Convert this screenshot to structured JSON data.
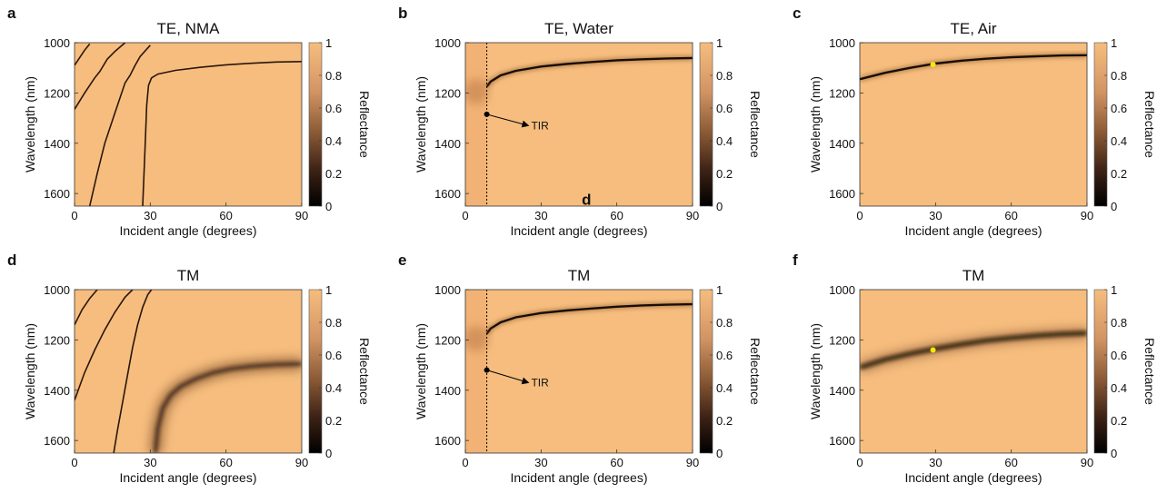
{
  "colors": {
    "background_high": "#f6bd7e",
    "colormap_low": "#000000",
    "marker": "#f5e80a"
  },
  "chart_data": [
    {
      "type": "heatmap",
      "letter": "a",
      "title": "TE, NMA",
      "xlabel": "Incident angle (degrees)",
      "ylabel": "Wavelength (nm)",
      "xlim": [
        0,
        90
      ],
      "ylim": [
        1650,
        1000
      ],
      "xticks": [
        "0",
        "30",
        "60",
        "90"
      ],
      "yticks": [
        "1000",
        "1200",
        "1400",
        "1600"
      ],
      "colorbar": {
        "label": "Reflectance",
        "ticks": [
          "0",
          "0.2",
          "0.4",
          "0.6",
          "0.8",
          "1"
        ]
      },
      "curves": [
        {
          "name": "",
          "style": "thin",
          "x": [
            0,
            2,
            4,
            6
          ],
          "y": [
            1090,
            1060,
            1030,
            1005
          ]
        },
        {
          "name": "",
          "style": "thin",
          "x": [
            0,
            4,
            8,
            10,
            13,
            16,
            20
          ],
          "y": [
            1265,
            1200,
            1140,
            1115,
            1065,
            1035,
            1000
          ]
        },
        {
          "name": "",
          "style": "thin",
          "x": [
            6,
            9,
            12,
            16,
            20,
            22,
            24,
            26,
            30
          ],
          "y": [
            1650,
            1520,
            1400,
            1280,
            1160,
            1130,
            1090,
            1055,
            1010
          ]
        },
        {
          "name": "",
          "style": "thin",
          "x": [
            27,
            28,
            28.6,
            29.3,
            30.5,
            33,
            40,
            50,
            60,
            70,
            80,
            90
          ],
          "y": [
            1650,
            1400,
            1250,
            1170,
            1140,
            1125,
            1110,
            1098,
            1088,
            1082,
            1077,
            1075
          ]
        }
      ],
      "marker": null,
      "vline_x": null,
      "annotation": null
    },
    {
      "type": "heatmap",
      "letter": "b",
      "title": "TE, Water",
      "xlabel": "Incident angle (degrees)",
      "ylabel": "Wavelength (nm)",
      "xlim": [
        0,
        90
      ],
      "ylim": [
        1650,
        1000
      ],
      "xticks": [
        "0",
        "30",
        "60",
        "90"
      ],
      "yticks": [
        "1000",
        "1200",
        "1400",
        "1600"
      ],
      "colorbar": {
        "label": "Reflectance",
        "ticks": [
          "0",
          "0.2",
          "0.4",
          "0.6",
          "0.8",
          "1"
        ]
      },
      "curves": [
        {
          "name": "",
          "style": "mode",
          "x": [
            8.5,
            10,
            14,
            20,
            30,
            40,
            50,
            60,
            70,
            80,
            90
          ],
          "y": [
            1175,
            1155,
            1130,
            1112,
            1095,
            1085,
            1077,
            1070,
            1066,
            1063,
            1061
          ]
        }
      ],
      "marker": null,
      "vline_x": 8.5,
      "annotation": {
        "text": "TIR",
        "point": [
          8.5,
          1285
        ],
        "arrow_to": [
          25,
          1330
        ]
      },
      "stray_label": {
        "text": "d",
        "x": 48,
        "y": 1645
      }
    },
    {
      "type": "heatmap",
      "letter": "c",
      "title": "TE, Air",
      "xlabel": "Incident angle (degrees)",
      "ylabel": "Wavelength (nm)",
      "xlim": [
        0,
        90
      ],
      "ylim": [
        1650,
        1000
      ],
      "xticks": [
        "0",
        "30",
        "60",
        "90"
      ],
      "yticks": [
        "1000",
        "1200",
        "1400",
        "1600"
      ],
      "colorbar": {
        "label": "Reflectance",
        "ticks": [
          "0",
          "0.2",
          "0.4",
          "0.6",
          "0.8",
          "1"
        ]
      },
      "curves": [
        {
          "name": "",
          "style": "mode",
          "x": [
            0,
            10,
            20,
            30,
            40,
            50,
            60,
            70,
            80,
            90
          ],
          "y": [
            1145,
            1120,
            1100,
            1083,
            1072,
            1064,
            1058,
            1054,
            1051,
            1050
          ]
        }
      ],
      "marker": {
        "x": 29,
        "y": 1087
      },
      "vline_x": null,
      "annotation": null
    },
    {
      "type": "heatmap",
      "letter": "d",
      "title": "TM",
      "xlabel": "Incident angle (degrees)",
      "ylabel": "Wavelength (nm)",
      "xlim": [
        0,
        90
      ],
      "ylim": [
        1650,
        1000
      ],
      "xticks": [
        "0",
        "30",
        "60",
        "90"
      ],
      "yticks": [
        "1000",
        "1200",
        "1400",
        "1600"
      ],
      "colorbar": {
        "label": "Reflectance",
        "ticks": [
          "0",
          "0.2",
          "0.4",
          "0.6",
          "0.8",
          "1"
        ]
      },
      "curves": [
        {
          "name": "",
          "style": "thin",
          "x": [
            0,
            3,
            6,
            9
          ],
          "y": [
            1140,
            1080,
            1035,
            1000
          ]
        },
        {
          "name": "",
          "style": "thin",
          "x": [
            0,
            4,
            8,
            12,
            16,
            20,
            23
          ],
          "y": [
            1440,
            1330,
            1240,
            1160,
            1090,
            1030,
            1000
          ]
        },
        {
          "name": "",
          "style": "thin",
          "x": [
            15.5,
            17,
            19,
            21,
            23,
            25,
            27,
            29,
            30.5
          ],
          "y": [
            1650,
            1560,
            1450,
            1340,
            1230,
            1140,
            1070,
            1020,
            1000
          ]
        },
        {
          "name": "",
          "style": "broad",
          "x": [
            32,
            33,
            35,
            38,
            42,
            48,
            55,
            62,
            70,
            80,
            90
          ],
          "y": [
            1650,
            1550,
            1470,
            1420,
            1385,
            1355,
            1330,
            1315,
            1305,
            1298,
            1295
          ]
        }
      ],
      "marker": null,
      "vline_x": null,
      "annotation": null
    },
    {
      "type": "heatmap",
      "letter": "e",
      "title": "TM",
      "xlabel": "Incident angle (degrees)",
      "ylabel": "Wavelength (nm)",
      "xlim": [
        0,
        90
      ],
      "ylim": [
        1650,
        1000
      ],
      "xticks": [
        "0",
        "30",
        "60",
        "90"
      ],
      "yticks": [
        "1000",
        "1200",
        "1400",
        "1600"
      ],
      "colorbar": {
        "label": "Reflectance",
        "ticks": [
          "0",
          "0.2",
          "0.4",
          "0.6",
          "0.8",
          "1"
        ]
      },
      "curves": [
        {
          "name": "",
          "style": "mode",
          "x": [
            8.5,
            10,
            14,
            20,
            30,
            40,
            50,
            60,
            70,
            80,
            90
          ],
          "y": [
            1175,
            1155,
            1130,
            1110,
            1093,
            1083,
            1075,
            1068,
            1063,
            1060,
            1058
          ]
        }
      ],
      "marker": null,
      "vline_x": 8.5,
      "annotation": {
        "text": "TIR",
        "point": [
          8.5,
          1320
        ],
        "arrow_to": [
          25,
          1370
        ]
      }
    },
    {
      "type": "heatmap",
      "letter": "f",
      "title": "TM",
      "xlabel": "Incident angle (degrees)",
      "ylabel": "Wavelength (nm)",
      "xlim": [
        0,
        90
      ],
      "ylim": [
        1650,
        1000
      ],
      "xticks": [
        "0",
        "30",
        "60",
        "90"
      ],
      "yticks": [
        "1000",
        "1200",
        "1400",
        "1600"
      ],
      "colorbar": {
        "label": "Reflectance",
        "ticks": [
          "0",
          "0.2",
          "0.4",
          "0.6",
          "0.8",
          "1"
        ]
      },
      "curves": [
        {
          "name": "",
          "style": "wide",
          "x": [
            0,
            10,
            20,
            30,
            40,
            50,
            60,
            70,
            80,
            90
          ],
          "y": [
            1310,
            1278,
            1255,
            1235,
            1218,
            1203,
            1192,
            1183,
            1177,
            1173
          ]
        }
      ],
      "marker": {
        "x": 29,
        "y": 1240
      },
      "vline_x": null,
      "annotation": null
    }
  ]
}
